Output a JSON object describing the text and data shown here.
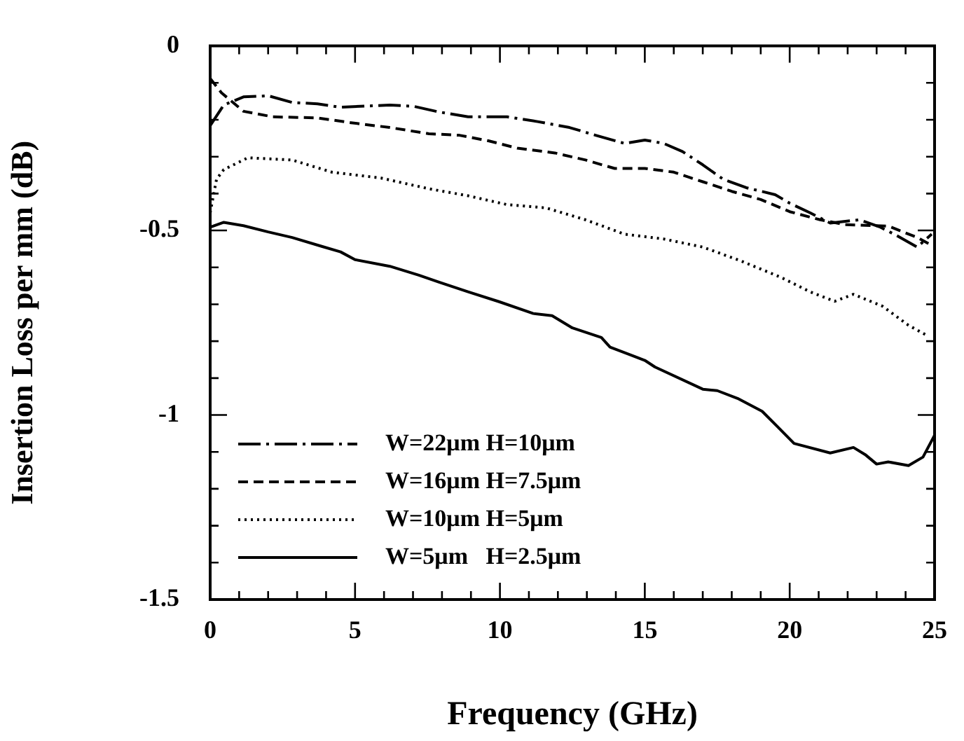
{
  "chart_data": {
    "type": "line",
    "xlabel": "Frequency (GHz)",
    "ylabel": "Insertion Loss per mm (dB)",
    "xlim": [
      0,
      25
    ],
    "ylim": [
      -1.5,
      0
    ],
    "xticks": [
      0,
      {
        "value": 1,
        "label": null
      },
      {
        "value": 2,
        "label": null
      },
      {
        "value": 3,
        "label": null
      },
      {
        "value": 4,
        "label": null
      },
      5,
      {
        "value": 6,
        "label": null
      },
      {
        "value": 7,
        "label": null
      },
      {
        "value": 8,
        "label": null
      },
      {
        "value": 9,
        "label": null
      },
      10,
      {
        "value": 11,
        "label": null
      },
      {
        "value": 12,
        "label": null
      },
      {
        "value": 13,
        "label": null
      },
      {
        "value": 14,
        "label": null
      },
      15,
      {
        "value": 16,
        "label": null
      },
      {
        "value": 17,
        "label": null
      },
      {
        "value": 18,
        "label": null
      },
      {
        "value": 19,
        "label": null
      },
      20,
      {
        "value": 21,
        "label": null
      },
      {
        "value": 22,
        "label": null
      },
      {
        "value": 23,
        "label": null
      },
      {
        "value": 24,
        "label": null
      },
      25
    ],
    "yticks": [
      -1.5,
      {
        "value": -1.4,
        "label": null
      },
      {
        "value": -1.3,
        "label": null
      },
      {
        "value": -1.2,
        "label": null
      },
      {
        "value": -1.1,
        "label": null
      },
      -1,
      {
        "value": -0.9,
        "label": null
      },
      {
        "value": -0.8,
        "label": null
      },
      {
        "value": -0.7,
        "label": null
      },
      {
        "value": -0.6,
        "label": null
      },
      -0.5,
      {
        "value": -0.4,
        "label": null
      },
      {
        "value": -0.3,
        "label": null
      },
      {
        "value": -0.2,
        "label": null
      },
      {
        "value": -0.1,
        "label": null
      },
      0
    ],
    "grid": false,
    "legend": "bottom left",
    "marker": "none",
    "series": [
      {
        "name": "W=22μm H=10μm",
        "color": "#000000",
        "line_style": "dashdot",
        "x": [
          0,
          0.47,
          1.15,
          2,
          2.83,
          3.7,
          4.5,
          6.2,
          7.05,
          7.9,
          8.9,
          10.25,
          11.3,
          12.4,
          13.3,
          14.3,
          15,
          15.65,
          16.3,
          17,
          17.7,
          18.5,
          19.5,
          20,
          20.7,
          21.4,
          22.4,
          23.1,
          23.7,
          24.4,
          24.9
        ],
        "values": [
          -0.216,
          -0.16,
          -0.138,
          -0.135,
          -0.153,
          -0.157,
          -0.166,
          -0.16,
          -0.164,
          -0.179,
          -0.192,
          -0.192,
          -0.205,
          -0.221,
          -0.242,
          -0.264,
          -0.255,
          -0.264,
          -0.286,
          -0.322,
          -0.361,
          -0.384,
          -0.403,
          -0.426,
          -0.452,
          -0.48,
          -0.471,
          -0.49,
          -0.514,
          -0.545,
          -0.51
        ]
      },
      {
        "name": "W=16μm H=7.5μm",
        "color": "#000000",
        "line_style": "dashed",
        "x": [
          0,
          0.39,
          1.15,
          2.16,
          3.7,
          4.86,
          6.2,
          7.55,
          8.6,
          9.6,
          10.6,
          11.9,
          12.95,
          13.96,
          15,
          16,
          17,
          18,
          19,
          20,
          21.05,
          21.9,
          23.4,
          24.4,
          24.8
        ],
        "values": [
          -0.088,
          -0.127,
          -0.177,
          -0.192,
          -0.195,
          -0.208,
          -0.221,
          -0.238,
          -0.242,
          -0.257,
          -0.277,
          -0.29,
          -0.309,
          -0.332,
          -0.332,
          -0.342,
          -0.368,
          -0.394,
          -0.416,
          -0.449,
          -0.471,
          -0.484,
          -0.488,
          -0.519,
          -0.536
        ]
      },
      {
        "name": "W=10μm H=5μm",
        "color": "#000000",
        "line_style": "dotted",
        "x": [
          0,
          0.22,
          0.47,
          1.3,
          2.83,
          4.2,
          5.9,
          7.55,
          8.9,
          10.25,
          11.6,
          12.95,
          14.3,
          15.65,
          17,
          18.3,
          19.7,
          20.7,
          21.55,
          22.2,
          23.2,
          24.1,
          24.8
        ],
        "values": [
          -0.452,
          -0.361,
          -0.335,
          -0.303,
          -0.309,
          -0.342,
          -0.358,
          -0.387,
          -0.406,
          -0.43,
          -0.439,
          -0.471,
          -0.51,
          -0.523,
          -0.545,
          -0.582,
          -0.627,
          -0.666,
          -0.692,
          -0.673,
          -0.705,
          -0.757,
          -0.787
        ]
      },
      {
        "name": "W=5μm   H=2.5μm",
        "color": "#000000",
        "line_style": "solid",
        "x": [
          0,
          0.47,
          1.15,
          2,
          2.83,
          3.85,
          4.5,
          5,
          6.2,
          7.2,
          7.9,
          8.9,
          9.97,
          11.15,
          11.8,
          12.5,
          13.5,
          13.8,
          15,
          15.35,
          17,
          17.5,
          18.2,
          19.05,
          19.56,
          20.15,
          21.4,
          22.2,
          22.6,
          23,
          23.4,
          24.1,
          24.6,
          25
        ],
        "values": [
          -0.491,
          -0.478,
          -0.487,
          -0.504,
          -0.519,
          -0.543,
          -0.558,
          -0.579,
          -0.597,
          -0.621,
          -0.64,
          -0.666,
          -0.693,
          -0.725,
          -0.731,
          -0.764,
          -0.79,
          -0.816,
          -0.852,
          -0.87,
          -0.93,
          -0.934,
          -0.955,
          -0.99,
          -1.03,
          -1.077,
          -1.103,
          -1.088,
          -1.107,
          -1.133,
          -1.127,
          -1.137,
          -1.114,
          -1.055
        ]
      }
    ]
  }
}
